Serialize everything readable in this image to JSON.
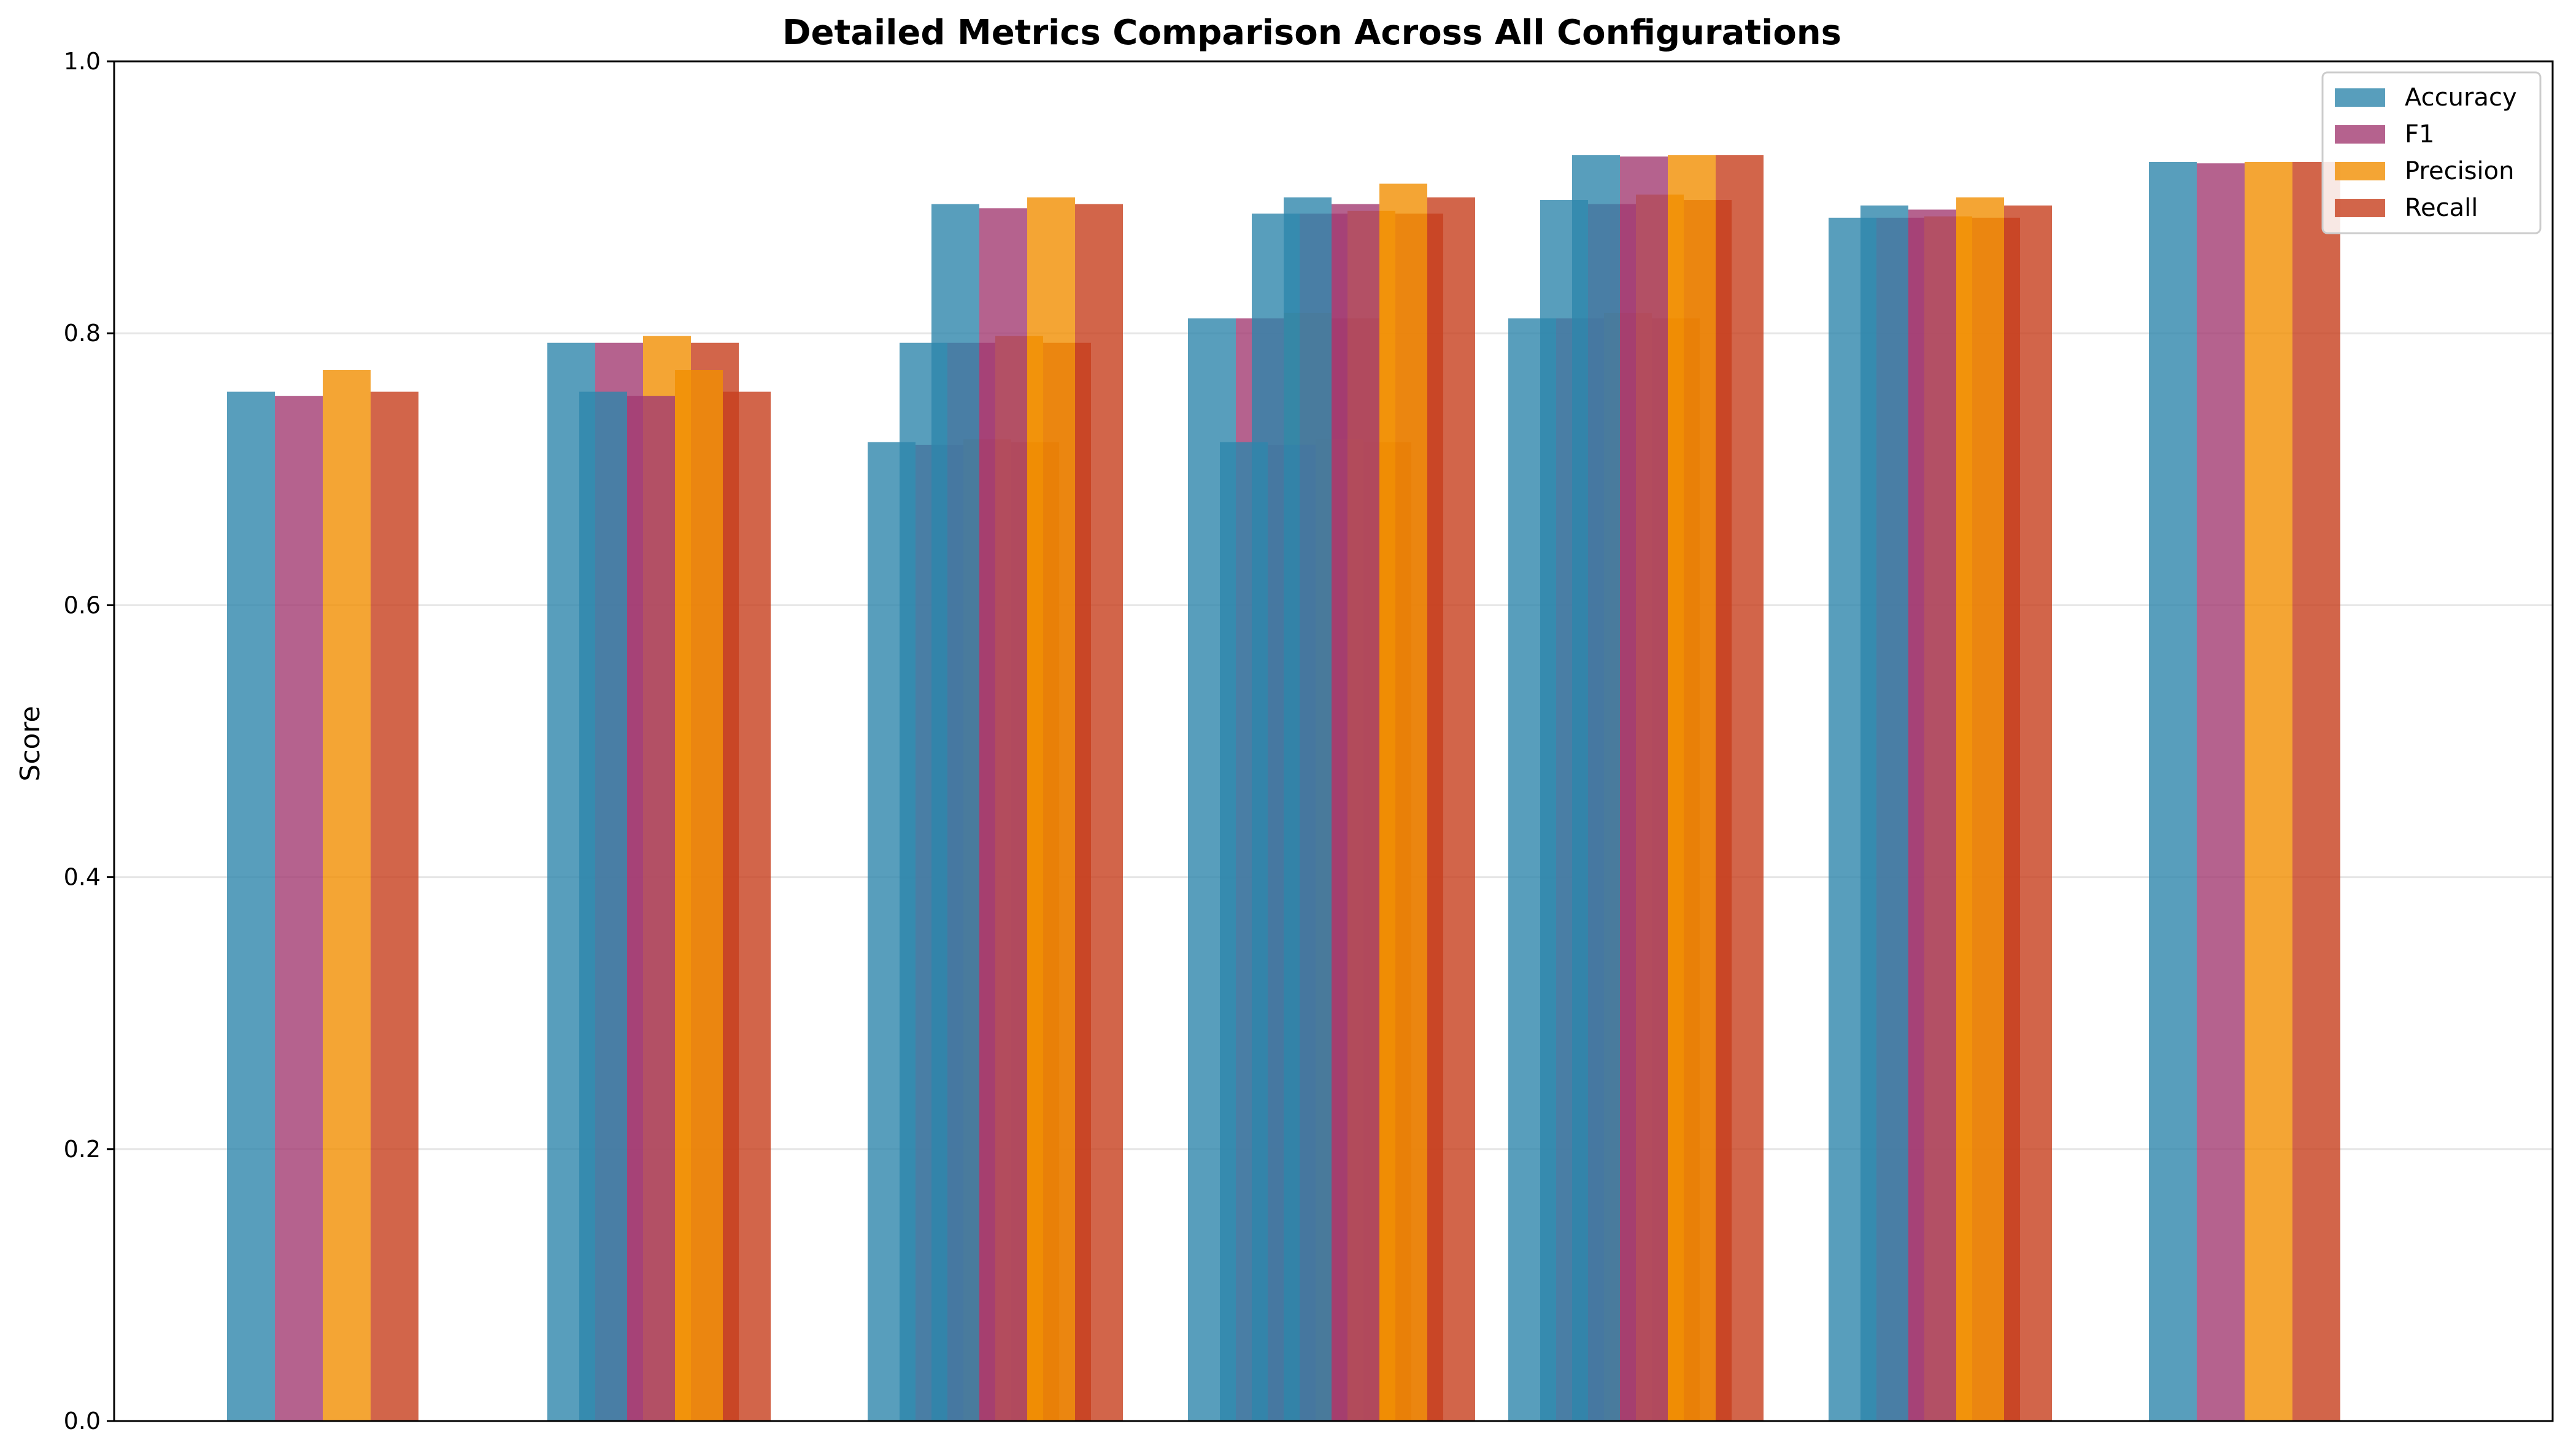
{
  "chart_data": {
    "type": "bar",
    "title": "Detailed Metrics Comparison Across All Configurations",
    "xlabel": "",
    "ylabel": "Score",
    "ylim": [
      0,
      1.0
    ],
    "yticks": [
      "0.0",
      "0.2",
      "0.4",
      "0.6",
      "0.8",
      "1.0"
    ],
    "grid": "horizontal",
    "legend_position": "top-right",
    "colors": {
      "Accuracy": "#2E86AB",
      "F1": "#A23B72",
      "Precision": "#F18F01",
      "Recall": "#C73E1D"
    },
    "bar_opacity": 0.8,
    "groups": [
      {
        "bars": [
          {
            "Accuracy": 0.757,
            "F1": 0.754,
            "Precision": 0.773,
            "Recall": 0.757
          }
        ]
      },
      {
        "bars": [
          {
            "Accuracy": 0.793,
            "F1": 0.793,
            "Precision": 0.798,
            "Recall": 0.793
          },
          {
            "Accuracy": 0.757,
            "F1": 0.754,
            "Precision": 0.773,
            "Recall": 0.757
          }
        ]
      },
      {
        "bars": [
          {
            "Accuracy": 0.72,
            "F1": 0.718,
            "Precision": 0.722,
            "Recall": 0.72
          },
          {
            "Accuracy": 0.793,
            "F1": 0.793,
            "Precision": 0.798,
            "Recall": 0.793
          },
          {
            "Accuracy": 0.895,
            "F1": 0.892,
            "Precision": 0.9,
            "Recall": 0.895
          }
        ]
      },
      {
        "bars": [
          {
            "Accuracy": 0.811,
            "F1": 0.811,
            "Precision": 0.815,
            "Recall": 0.811
          },
          {
            "Accuracy": 0.72,
            "F1": 0.718,
            "Precision": 0.722,
            "Recall": 0.72
          },
          {
            "Accuracy": 0.888,
            "F1": 0.888,
            "Precision": 0.89,
            "Recall": 0.888
          },
          {
            "Accuracy": 0.9,
            "F1": 0.895,
            "Precision": 0.91,
            "Recall": 0.9
          }
        ]
      },
      {
        "bars": [
          {
            "Accuracy": 0.811,
            "F1": 0.811,
            "Precision": 0.815,
            "Recall": 0.811
          },
          {
            "Accuracy": 0.898,
            "F1": 0.895,
            "Precision": 0.902,
            "Recall": 0.898
          },
          {
            "Accuracy": 0.931,
            "F1": 0.93,
            "Precision": 0.931,
            "Recall": 0.931
          }
        ]
      },
      {
        "bars": [
          {
            "Accuracy": 0.885,
            "F1": 0.885,
            "Precision": 0.886,
            "Recall": 0.885
          },
          {
            "Accuracy": 0.894,
            "F1": 0.891,
            "Precision": 0.9,
            "Recall": 0.894
          }
        ]
      },
      {
        "bars": [
          {
            "Accuracy": 0.926,
            "F1": 0.925,
            "Precision": 0.926,
            "Recall": 0.926
          }
        ]
      }
    ],
    "series": [
      {
        "name": "Accuracy"
      },
      {
        "name": "F1"
      },
      {
        "name": "Precision"
      },
      {
        "name": "Recall"
      }
    ]
  }
}
